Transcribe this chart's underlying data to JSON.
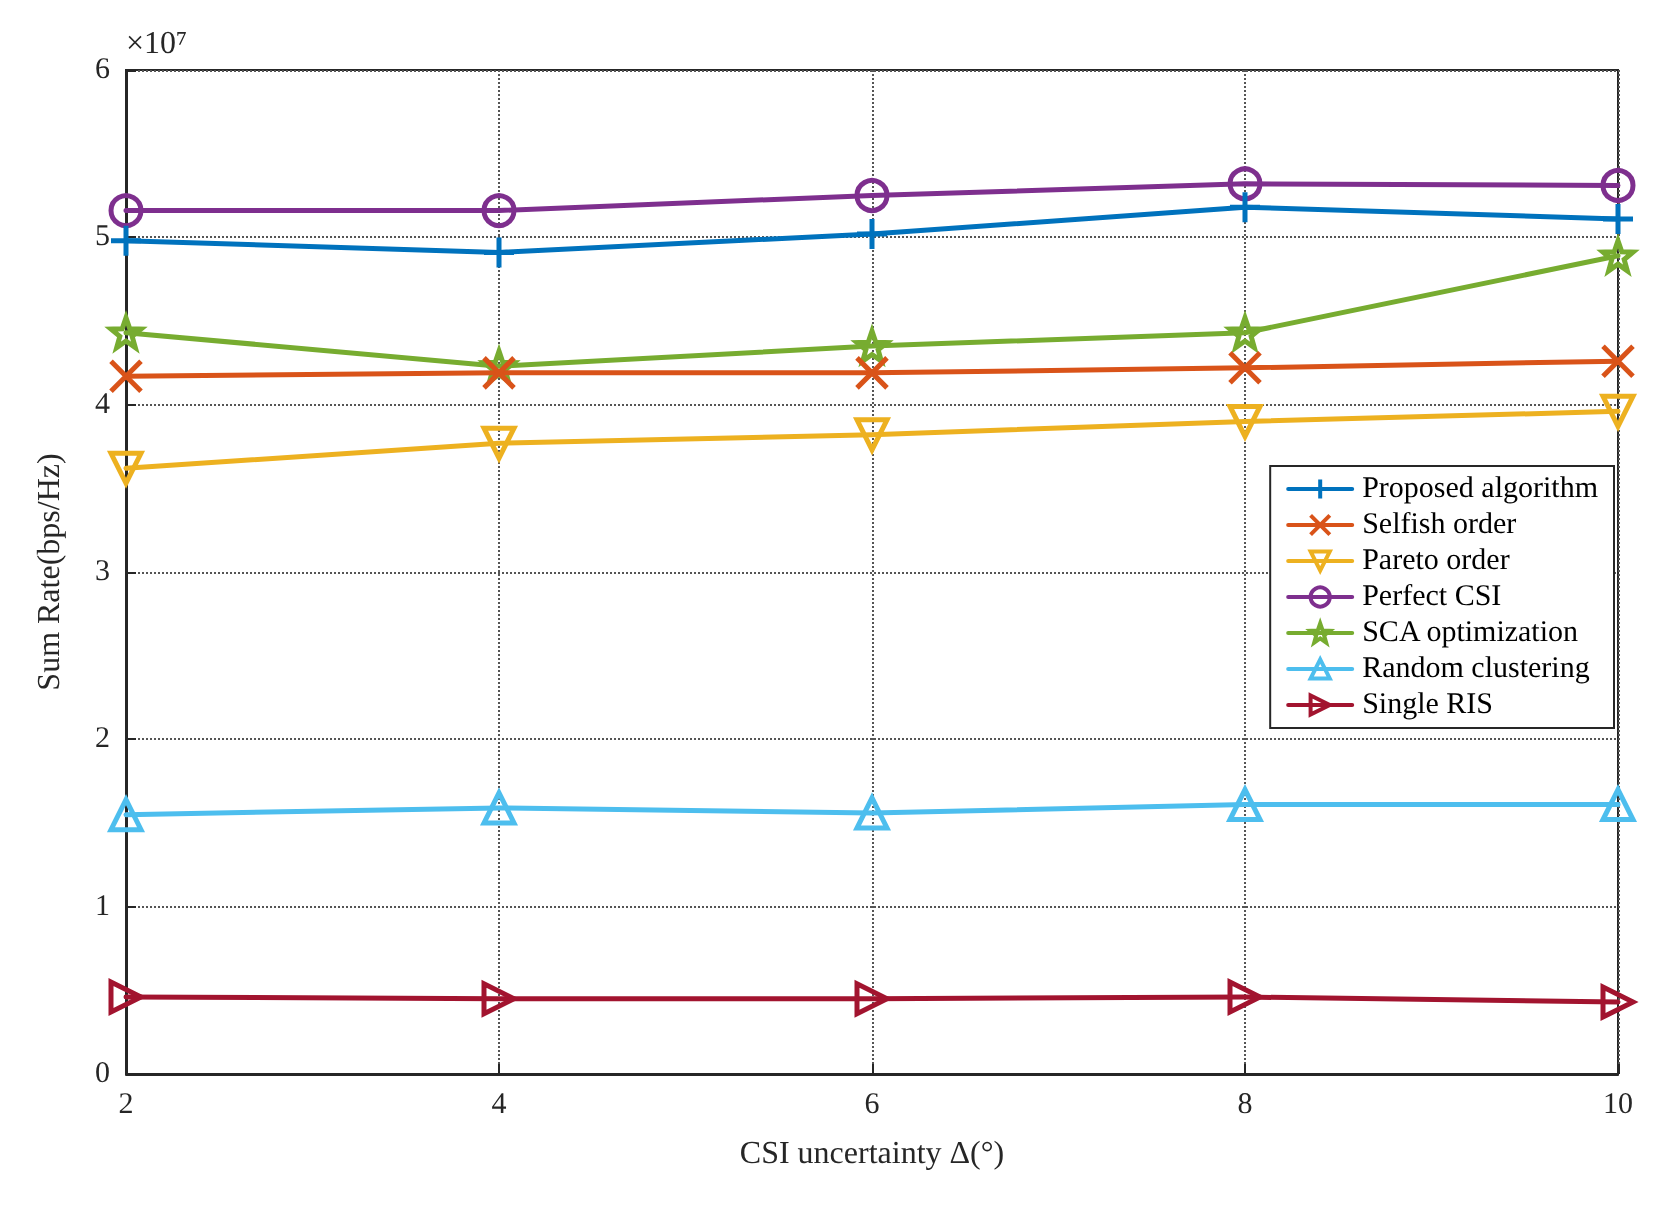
{
  "chart_data": {
    "type": "line",
    "xlabel": "CSI uncertainty Δ(°)",
    "ylabel": "Sum Rate(bps/Hz)",
    "annotations": [
      "×10⁷"
    ],
    "x": [
      2,
      4,
      6,
      8,
      10
    ],
    "xlim": [
      2,
      10
    ],
    "xticks": [
      2,
      4,
      6,
      8,
      10
    ],
    "ylim": [
      0,
      6
    ],
    "yticks": [
      0,
      1,
      2,
      3,
      4,
      5,
      6
    ],
    "grid": true,
    "legend": "right",
    "line_style": "solid",
    "series": [
      {
        "name": "Proposed algorithm",
        "color": "#0072bd",
        "marker": "plus",
        "values": [
          4.98,
          4.91,
          5.02,
          5.18,
          5.11
        ]
      },
      {
        "name": "Selfish order",
        "color": "#d95319",
        "marker": "cross",
        "values": [
          4.17,
          4.19,
          4.19,
          4.22,
          4.26
        ]
      },
      {
        "name": "Pareto order",
        "color": "#edb120",
        "marker": "triangle-down",
        "values": [
          3.62,
          3.77,
          3.82,
          3.9,
          3.96
        ]
      },
      {
        "name": "Perfect CSI",
        "color": "#7e2f8e",
        "marker": "circle",
        "values": [
          5.16,
          5.16,
          5.25,
          5.32,
          5.31
        ]
      },
      {
        "name": "SCA optimization",
        "color": "#77ac30",
        "marker": "star",
        "values": [
          4.43,
          4.23,
          4.35,
          4.43,
          4.89
        ]
      },
      {
        "name": "Random clustering",
        "color": "#4dbeee",
        "marker": "triangle",
        "values": [
          1.55,
          1.59,
          1.56,
          1.61,
          1.61
        ]
      },
      {
        "name": "Single RIS",
        "color": "#a2142f",
        "marker": "triangle-right",
        "values": [
          0.46,
          0.45,
          0.45,
          0.46,
          0.43
        ]
      }
    ]
  }
}
